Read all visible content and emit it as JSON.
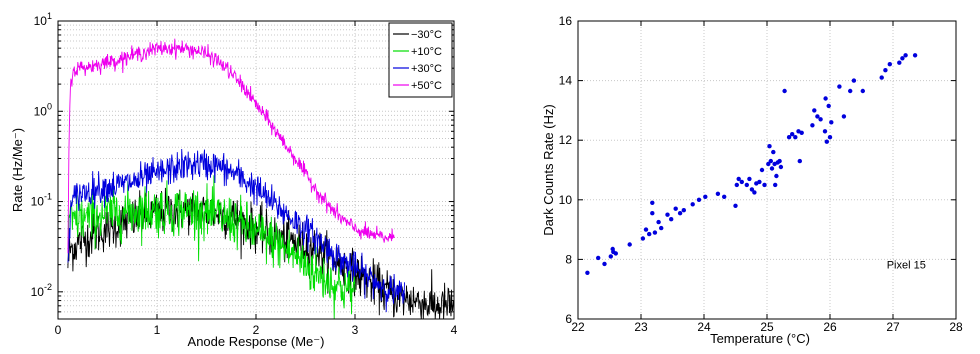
{
  "chart_data": [
    {
      "type": "line",
      "title": "",
      "xlabel": "Anode Response (Me⁻)",
      "ylabel": "Rate (Hz/Me⁻)",
      "xlim": [
        0,
        4
      ],
      "ylim": [
        0.005,
        10
      ],
      "yscale": "log",
      "grid": true,
      "legend_position": "top-right",
      "x_ticks": [
        "0",
        "1",
        "2",
        "3",
        "4"
      ],
      "y_ticks": [
        {
          "base": "10",
          "exp": "1",
          "value": 10
        },
        {
          "base": "10",
          "exp": "0",
          "value": 1
        },
        {
          "base": "10",
          "exp": "-1",
          "value": 0.1
        },
        {
          "base": "10",
          "exp": "-2",
          "value": 0.01
        }
      ],
      "series": [
        {
          "name": "−30°C",
          "color": "#000000",
          "noise": 0.28,
          "x": [
            0.1,
            0.12,
            0.15,
            0.2,
            0.3,
            0.4,
            0.5,
            0.6,
            0.8,
            1.0,
            1.2,
            1.4,
            1.6,
            1.8,
            2.0,
            2.2,
            2.4,
            2.6,
            2.8,
            3.0,
            3.2,
            3.4,
            3.6,
            3.8,
            4.0
          ],
          "y": [
            0.02,
            0.03,
            0.03,
            0.035,
            0.04,
            0.045,
            0.05,
            0.055,
            0.065,
            0.075,
            0.08,
            0.08,
            0.075,
            0.065,
            0.05,
            0.04,
            0.035,
            0.03,
            0.022,
            0.016,
            0.012,
            0.009,
            0.008,
            0.007,
            0.007
          ]
        },
        {
          "name": "+10°C",
          "color": "#00dd00",
          "noise": 0.32,
          "x": [
            0.1,
            0.12,
            0.15,
            0.2,
            0.3,
            0.4,
            0.6,
            0.8,
            1.0,
            1.2,
            1.4,
            1.6,
            1.8,
            2.0,
            2.2,
            2.4,
            2.5,
            2.6,
            2.7,
            2.8,
            2.9,
            3.0
          ],
          "y": [
            0.04,
            0.06,
            0.06,
            0.065,
            0.065,
            0.07,
            0.075,
            0.08,
            0.08,
            0.08,
            0.08,
            0.07,
            0.06,
            0.045,
            0.035,
            0.025,
            0.02,
            0.016,
            0.014,
            0.012,
            0.011,
            0.01
          ]
        },
        {
          "name": "+30°C",
          "color": "#0000dd",
          "noise": 0.2,
          "x": [
            0.1,
            0.12,
            0.15,
            0.2,
            0.3,
            0.4,
            0.6,
            0.8,
            1.0,
            1.2,
            1.4,
            1.6,
            1.8,
            2.0,
            2.2,
            2.4,
            2.6,
            2.7,
            2.8,
            3.0,
            3.2,
            3.4,
            3.5
          ],
          "y": [
            0.02,
            0.07,
            0.1,
            0.12,
            0.13,
            0.14,
            0.15,
            0.17,
            0.2,
            0.24,
            0.26,
            0.25,
            0.2,
            0.14,
            0.09,
            0.06,
            0.04,
            0.032,
            0.025,
            0.018,
            0.013,
            0.01,
            0.009
          ]
        },
        {
          "name": "+50°C",
          "color": "#ee00ee",
          "noise": 0.1,
          "x": [
            0.1,
            0.11,
            0.12,
            0.13,
            0.15,
            0.18,
            0.2,
            0.3,
            0.4,
            0.5,
            0.6,
            0.7,
            0.8,
            0.9,
            1.0,
            1.1,
            1.2,
            1.3,
            1.4,
            1.5,
            1.6,
            1.7,
            1.8,
            1.9,
            2.0,
            2.1,
            2.2,
            2.3,
            2.4,
            2.5,
            2.6,
            2.7,
            2.8,
            2.9,
            3.0,
            3.1,
            3.2,
            3.3,
            3.4
          ],
          "y": [
            0.03,
            0.3,
            1.2,
            2.2,
            2.7,
            2.9,
            3.0,
            3.1,
            3.3,
            3.5,
            3.7,
            4.0,
            4.3,
            4.6,
            4.9,
            5.0,
            5.0,
            4.9,
            4.7,
            4.3,
            3.7,
            3.0,
            2.3,
            1.7,
            1.2,
            0.85,
            0.6,
            0.42,
            0.3,
            0.2,
            0.14,
            0.1,
            0.075,
            0.06,
            0.05,
            0.045,
            0.042,
            0.04,
            0.04
          ]
        }
      ]
    },
    {
      "type": "scatter",
      "title": "",
      "xlabel": "Temperature (°C)",
      "ylabel": "Dark Counts Rate (Hz)",
      "xlim": [
        22,
        28
      ],
      "ylim": [
        6,
        16
      ],
      "grid": true,
      "annotation": "Pixel 15",
      "color": "#0000dd",
      "x_ticks": [
        "22",
        "23",
        "24",
        "25",
        "26",
        "27",
        "28"
      ],
      "y_ticks": [
        "6",
        "8",
        "10",
        "12",
        "14",
        "16"
      ],
      "points": [
        [
          22.15,
          7.55
        ],
        [
          22.32,
          8.05
        ],
        [
          22.42,
          7.85
        ],
        [
          22.52,
          8.1
        ],
        [
          22.55,
          8.35
        ],
        [
          22.56,
          8.25
        ],
        [
          22.6,
          8.2
        ],
        [
          22.82,
          8.5
        ],
        [
          23.03,
          8.7
        ],
        [
          23.08,
          9.0
        ],
        [
          23.13,
          8.85
        ],
        [
          23.18,
          9.55
        ],
        [
          23.18,
          9.9
        ],
        [
          23.22,
          8.9
        ],
        [
          23.28,
          9.25
        ],
        [
          23.32,
          9.05
        ],
        [
          23.42,
          9.5
        ],
        [
          23.48,
          9.35
        ],
        [
          23.55,
          9.7
        ],
        [
          23.62,
          9.55
        ],
        [
          23.68,
          9.65
        ],
        [
          23.82,
          9.85
        ],
        [
          23.92,
          10.0
        ],
        [
          24.02,
          10.1
        ],
        [
          24.22,
          10.2
        ],
        [
          24.32,
          10.1
        ],
        [
          24.5,
          9.8
        ],
        [
          24.52,
          10.5
        ],
        [
          24.55,
          10.7
        ],
        [
          24.6,
          10.6
        ],
        [
          24.68,
          10.5
        ],
        [
          24.72,
          10.7
        ],
        [
          24.76,
          10.35
        ],
        [
          24.8,
          10.25
        ],
        [
          24.83,
          10.55
        ],
        [
          24.88,
          10.6
        ],
        [
          24.92,
          11.0
        ],
        [
          24.96,
          10.5
        ],
        [
          25.02,
          11.2
        ],
        [
          25.04,
          11.8
        ],
        [
          25.06,
          11.3
        ],
        [
          25.08,
          11.05
        ],
        [
          25.1,
          11.6
        ],
        [
          25.12,
          11.2
        ],
        [
          25.13,
          10.5
        ],
        [
          25.15,
          10.8
        ],
        [
          25.17,
          11.25
        ],
        [
          25.2,
          11.3
        ],
        [
          25.22,
          11.1
        ],
        [
          25.28,
          13.65
        ],
        [
          25.35,
          12.1
        ],
        [
          25.4,
          12.2
        ],
        [
          25.45,
          12.1
        ],
        [
          25.5,
          12.3
        ],
        [
          25.52,
          11.3
        ],
        [
          25.55,
          12.25
        ],
        [
          25.72,
          12.5
        ],
        [
          25.75,
          13.0
        ],
        [
          25.8,
          12.8
        ],
        [
          25.85,
          12.7
        ],
        [
          25.92,
          12.3
        ],
        [
          25.93,
          13.4
        ],
        [
          25.95,
          11.95
        ],
        [
          25.98,
          13.15
        ],
        [
          26.0,
          12.1
        ],
        [
          26.02,
          12.6
        ],
        [
          26.15,
          13.8
        ],
        [
          26.22,
          12.8
        ],
        [
          26.32,
          13.65
        ],
        [
          26.38,
          14.0
        ],
        [
          26.52,
          13.65
        ],
        [
          26.82,
          14.1
        ],
        [
          26.88,
          14.35
        ],
        [
          26.95,
          14.55
        ],
        [
          27.1,
          14.6
        ],
        [
          27.15,
          14.75
        ],
        [
          27.2,
          14.85
        ],
        [
          27.35,
          14.85
        ]
      ]
    }
  ]
}
